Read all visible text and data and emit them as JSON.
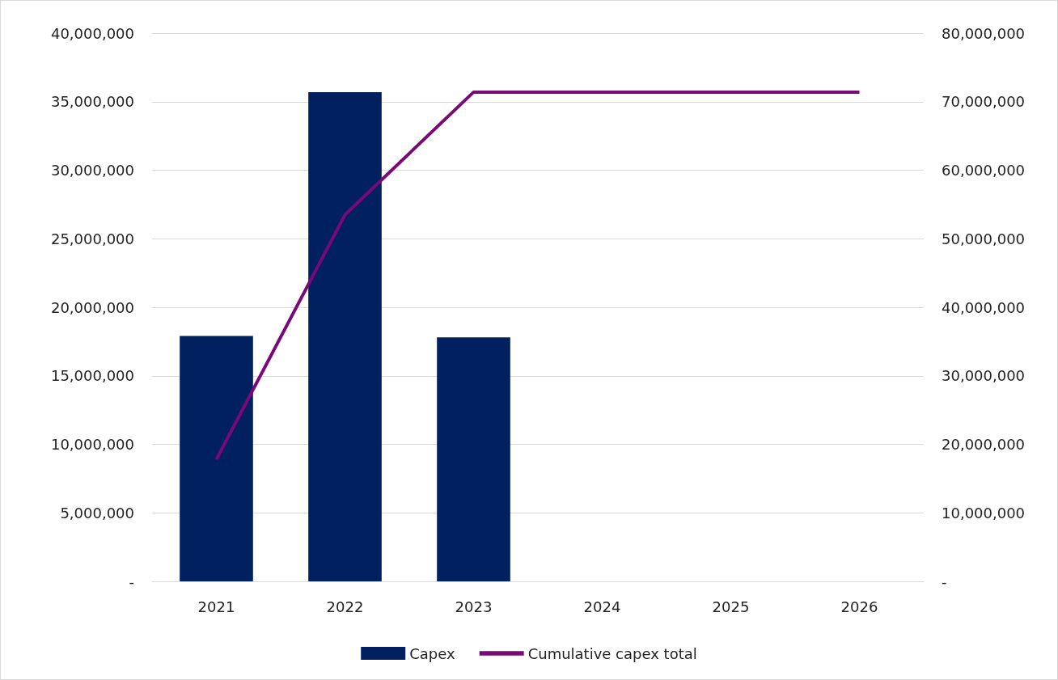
{
  "chart_data": {
    "type": "bar",
    "categories": [
      "2021",
      "2022",
      "2023",
      "2024",
      "2025",
      "2026"
    ],
    "series": [
      {
        "name": "Capex",
        "color": "#002060",
        "values": [
          17900000,
          35700000,
          17800000,
          null,
          null,
          null
        ]
      },
      {
        "name": "Cumulative capex total",
        "type": "line",
        "axis": "y2",
        "color": "#790979",
        "marker": "none",
        "values": [
          17800000,
          53500000,
          71400000,
          71400000,
          71400000,
          71400000
        ]
      }
    ],
    "ylim": [
      0,
      40000000
    ],
    "yticks": [
      {
        "value": 0,
        "label": "-"
      },
      {
        "value": 5000000,
        "label": "5,000,000"
      },
      {
        "value": 10000000,
        "label": "10,000,000"
      },
      {
        "value": 15000000,
        "label": "15,000,000"
      },
      {
        "value": 20000000,
        "label": "20,000,000"
      },
      {
        "value": 25000000,
        "label": "25,000,000"
      },
      {
        "value": 30000000,
        "label": "30,000,000"
      },
      {
        "value": 35000000,
        "label": "35,000,000"
      },
      {
        "value": 40000000,
        "label": "40,000,000"
      }
    ],
    "y2lim": [
      0,
      80000000
    ],
    "y2ticks": [
      {
        "value": 0,
        "label": "-"
      },
      {
        "value": 10000000,
        "label": "10,000,000"
      },
      {
        "value": 20000000,
        "label": "20,000,000"
      },
      {
        "value": 30000000,
        "label": "30,000,000"
      },
      {
        "value": 40000000,
        "label": "40,000,000"
      },
      {
        "value": 50000000,
        "label": "50,000,000"
      },
      {
        "value": 60000000,
        "label": "60,000,000"
      },
      {
        "value": 70000000,
        "label": "70,000,000"
      },
      {
        "value": 80000000,
        "label": "80,000,000"
      }
    ],
    "grid": "y",
    "legend": "bottom"
  }
}
